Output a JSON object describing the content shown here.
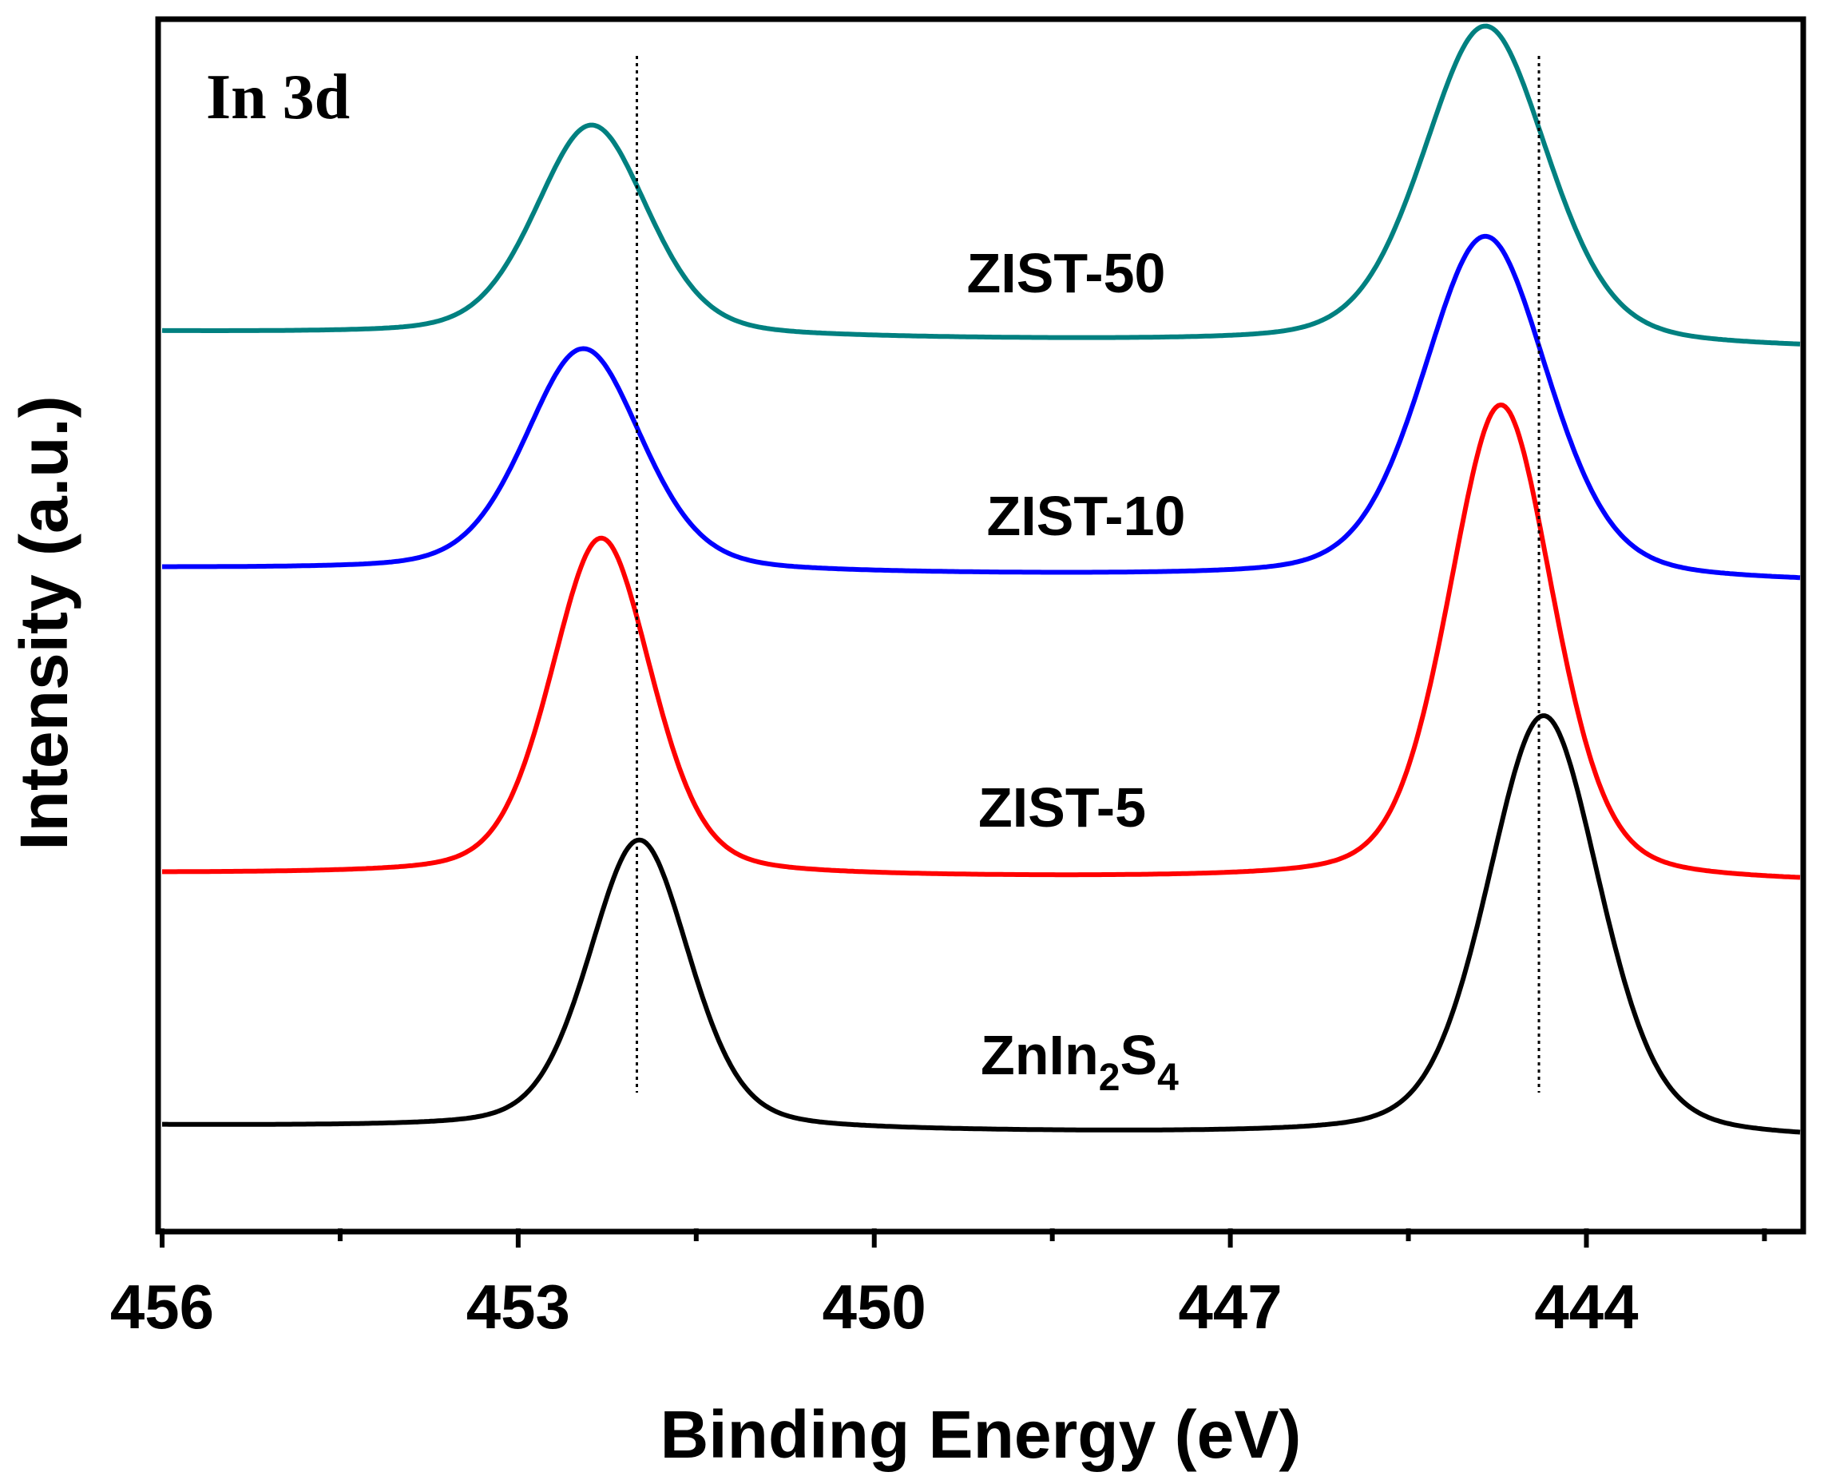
{
  "chart_data": {
    "type": "line",
    "title": "In 3d",
    "xlabel": "Binding Energy (eV)",
    "ylabel": "Intensity (a.u.)",
    "xlim": [
      456,
      442.2
    ],
    "x_reversed": true,
    "xticks": [
      456,
      453,
      450,
      447,
      444
    ],
    "xtick_labels": [
      "456",
      "453",
      "450",
      "447",
      "444"
    ],
    "minor_xticks": [
      454.5,
      451.5,
      448.5,
      445.5,
      442.5
    ],
    "ylim": [
      0,
      100
    ],
    "y_ticks_shown": false,
    "reference_lines": [
      452.0,
      444.4
    ],
    "series": [
      {
        "name": "ZnIn2S4",
        "label_main": "ZnIn",
        "label_sub1": "2",
        "label_mid": "S",
        "label_sub2": "4",
        "color": "#000000",
        "baseline": 8.5,
        "tail": 7.3,
        "peaks": [
          {
            "center": 451.98,
            "height": 24.0,
            "width": 0.5
          },
          {
            "center": 444.36,
            "height": 35.0,
            "width": 0.56
          }
        ]
      },
      {
        "name": "ZIST-5",
        "color": "#ff0000",
        "baseline": 29.4,
        "tail": 28.6,
        "peaks": [
          {
            "center": 452.3,
            "height": 28.0,
            "width": 0.5
          },
          {
            "center": 444.72,
            "height": 39.5,
            "width": 0.52
          }
        ]
      },
      {
        "name": "ZIST-10",
        "color": "#0000ff",
        "baseline": 54.7,
        "tail": 53.5,
        "peaks": [
          {
            "center": 452.45,
            "height": 18.5,
            "width": 0.58
          },
          {
            "center": 444.85,
            "height": 28.5,
            "width": 0.62
          }
        ]
      },
      {
        "name": "ZIST-50",
        "color": "#008080",
        "baseline": 74.3,
        "tail": 72.9,
        "peaks": [
          {
            "center": 452.38,
            "height": 17.5,
            "width": 0.56
          },
          {
            "center": 444.85,
            "height": 26.5,
            "width": 0.62
          }
        ]
      }
    ]
  }
}
